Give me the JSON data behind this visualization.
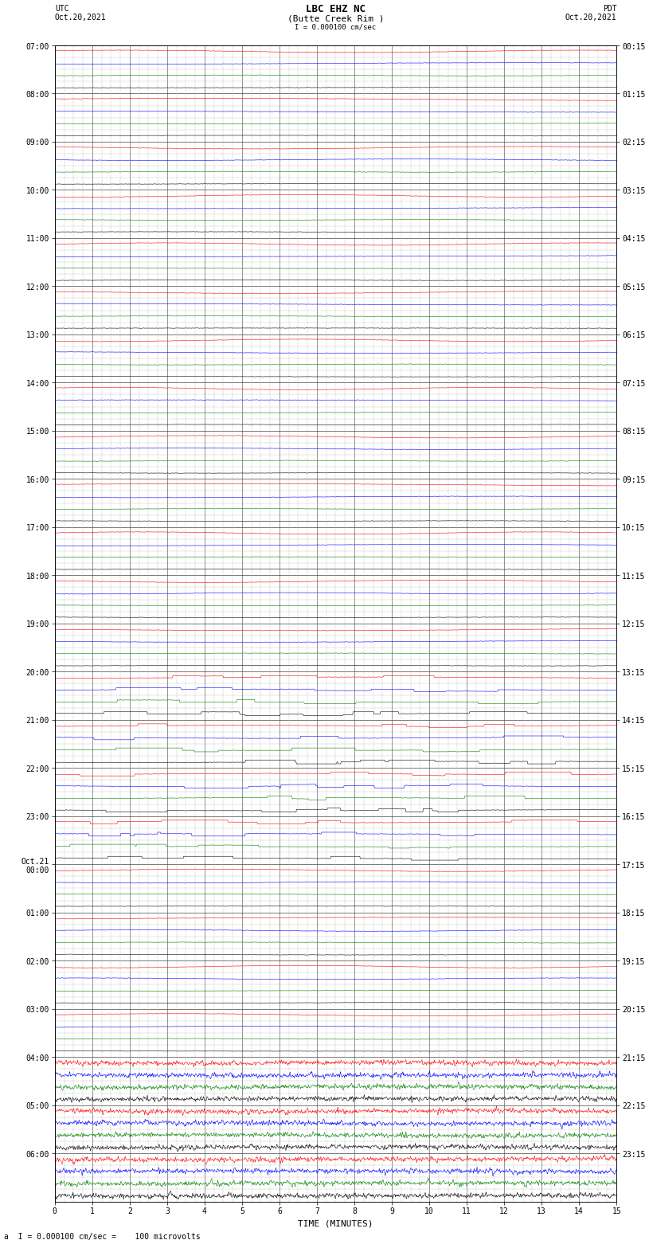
{
  "title_line1": "LBC EHZ NC",
  "title_line2": "(Butte Creek Rim )",
  "scale_bar_text": "I = 0.000100 cm/sec",
  "left_label_line1": "UTC",
  "left_label_line2": "Oct.20,2021",
  "right_label_line1": "PDT",
  "right_label_line2": "Oct.20,2021",
  "bottom_label": "a  I = 0.000100 cm/sec =    100 microvolts",
  "xlabel": "TIME (MINUTES)",
  "utc_labels": [
    "07:00",
    "08:00",
    "09:00",
    "10:00",
    "11:00",
    "12:00",
    "13:00",
    "14:00",
    "15:00",
    "16:00",
    "17:00",
    "18:00",
    "19:00",
    "20:00",
    "21:00",
    "22:00",
    "23:00",
    "Oct.21\n00:00",
    "01:00",
    "02:00",
    "03:00",
    "04:00",
    "05:00",
    "06:00"
  ],
  "pdt_labels": [
    "00:15",
    "01:15",
    "02:15",
    "03:15",
    "04:15",
    "05:15",
    "06:15",
    "07:15",
    "08:15",
    "09:15",
    "10:15",
    "11:15",
    "12:15",
    "13:15",
    "14:15",
    "15:15",
    "16:15",
    "17:15",
    "18:15",
    "19:15",
    "20:15",
    "21:15",
    "22:15",
    "23:15"
  ],
  "n_hours": 24,
  "bands_per_hour": 4,
  "colors": [
    "red",
    "blue",
    "green",
    "black"
  ],
  "bg_color": "white",
  "grid_color": "#888888",
  "text_color": "black",
  "title_fontsize": 8,
  "label_fontsize": 7,
  "active_hours_eq": [
    13,
    14,
    15,
    16
  ],
  "active_hours_noise": [
    21,
    22,
    23
  ],
  "seed": 12345
}
